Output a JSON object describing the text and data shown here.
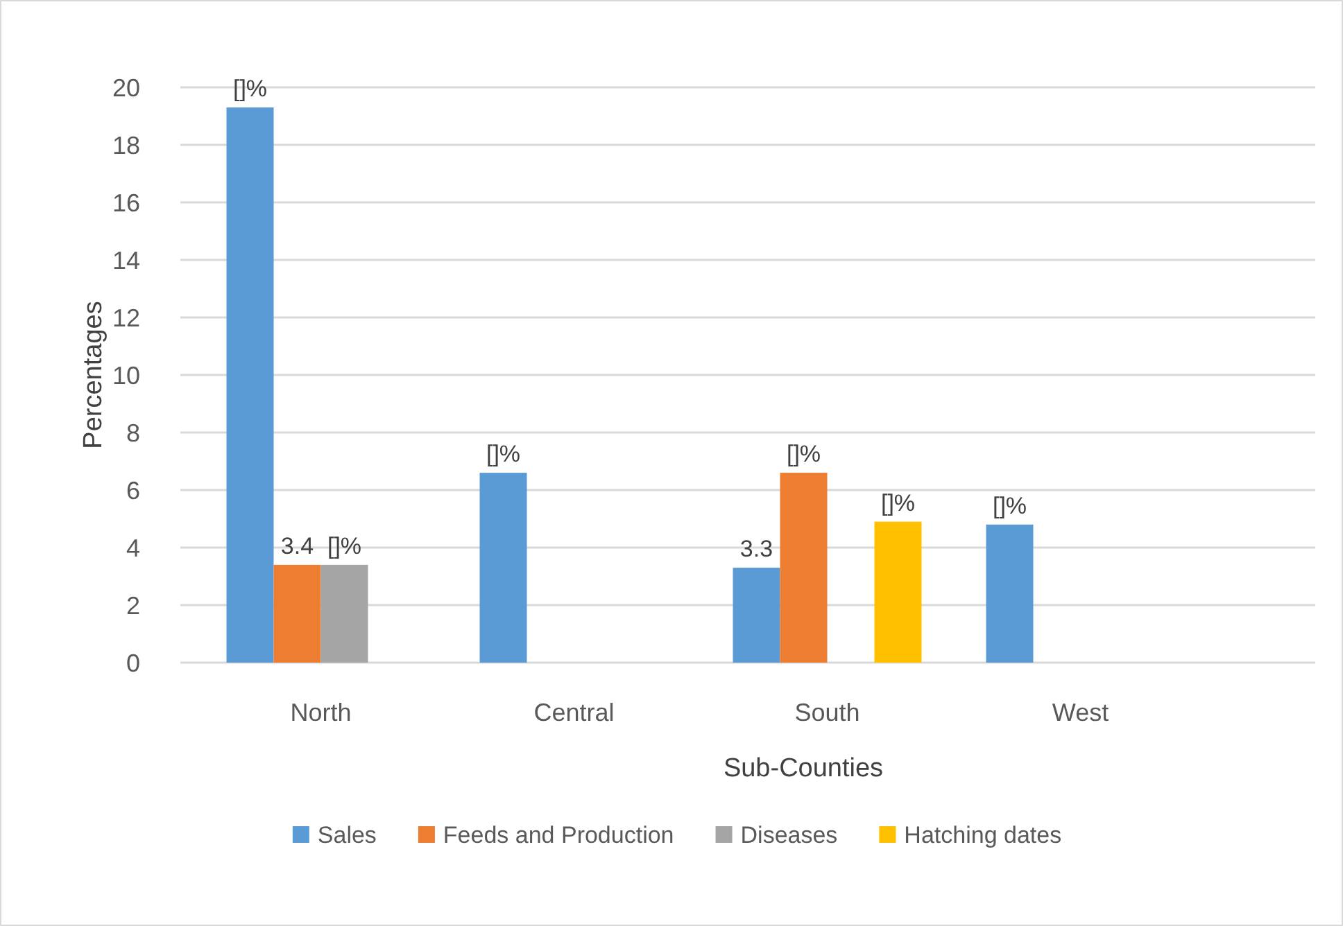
{
  "chart_data": {
    "type": "bar",
    "xlabel": "Sub-Counties",
    "ylabel": "Percentages",
    "categories": [
      "North",
      "Central",
      "South",
      "West"
    ],
    "series": [
      {
        "name": "Sales",
        "color": "#5b9bd5",
        "values": [
          19.3,
          6.6,
          3.3,
          4.8
        ],
        "value_labels": [
          "[]%",
          "[]%",
          "3.3",
          "[]%"
        ]
      },
      {
        "name": "Feeds and Production",
        "color": "#ed7d31",
        "values": [
          3.4,
          null,
          6.6,
          null
        ],
        "value_labels": [
          "3.4",
          null,
          "[]%",
          null
        ]
      },
      {
        "name": "Diseases",
        "color": "#a5a5a5",
        "values": [
          3.4,
          null,
          null,
          null
        ],
        "value_labels": [
          "[]%",
          null,
          null,
          null
        ]
      },
      {
        "name": "Hatching dates",
        "color": "#ffc000",
        "values": [
          null,
          null,
          4.9,
          null
        ],
        "value_labels": [
          null,
          null,
          "[]%",
          null
        ]
      }
    ],
    "ylim": [
      0,
      20
    ],
    "yticks": [
      0,
      2,
      4,
      6,
      8,
      10,
      12,
      14,
      16,
      18,
      20
    ],
    "grid": "y",
    "legend": "bottom"
  }
}
